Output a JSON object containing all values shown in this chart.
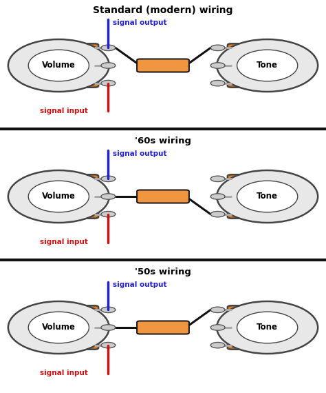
{
  "bg_color": "#ffffff",
  "orange_body": "#E88020",
  "orange_cap": "#F09540",
  "pot_fill": "#e8e8e8",
  "pot_stroke": "#444444",
  "wire_black": "#111111",
  "wire_blue": "#2222cc",
  "wire_red": "#cc1111",
  "label_blue": "#2222cc",
  "label_red": "#cc1111",
  "divider_color": "#111111",
  "lug_fill": "#cccccc",
  "lug_edge": "#555555",
  "section_titles": [
    "Standard (modern) wiring",
    "'60s wiring",
    "'50s wiring"
  ],
  "text_signal_output": "signal output",
  "text_signal_input": "signal input",
  "text_volume": "Volume",
  "text_tone": "Tone",
  "modes": [
    "modern",
    "60s",
    "50s"
  ]
}
